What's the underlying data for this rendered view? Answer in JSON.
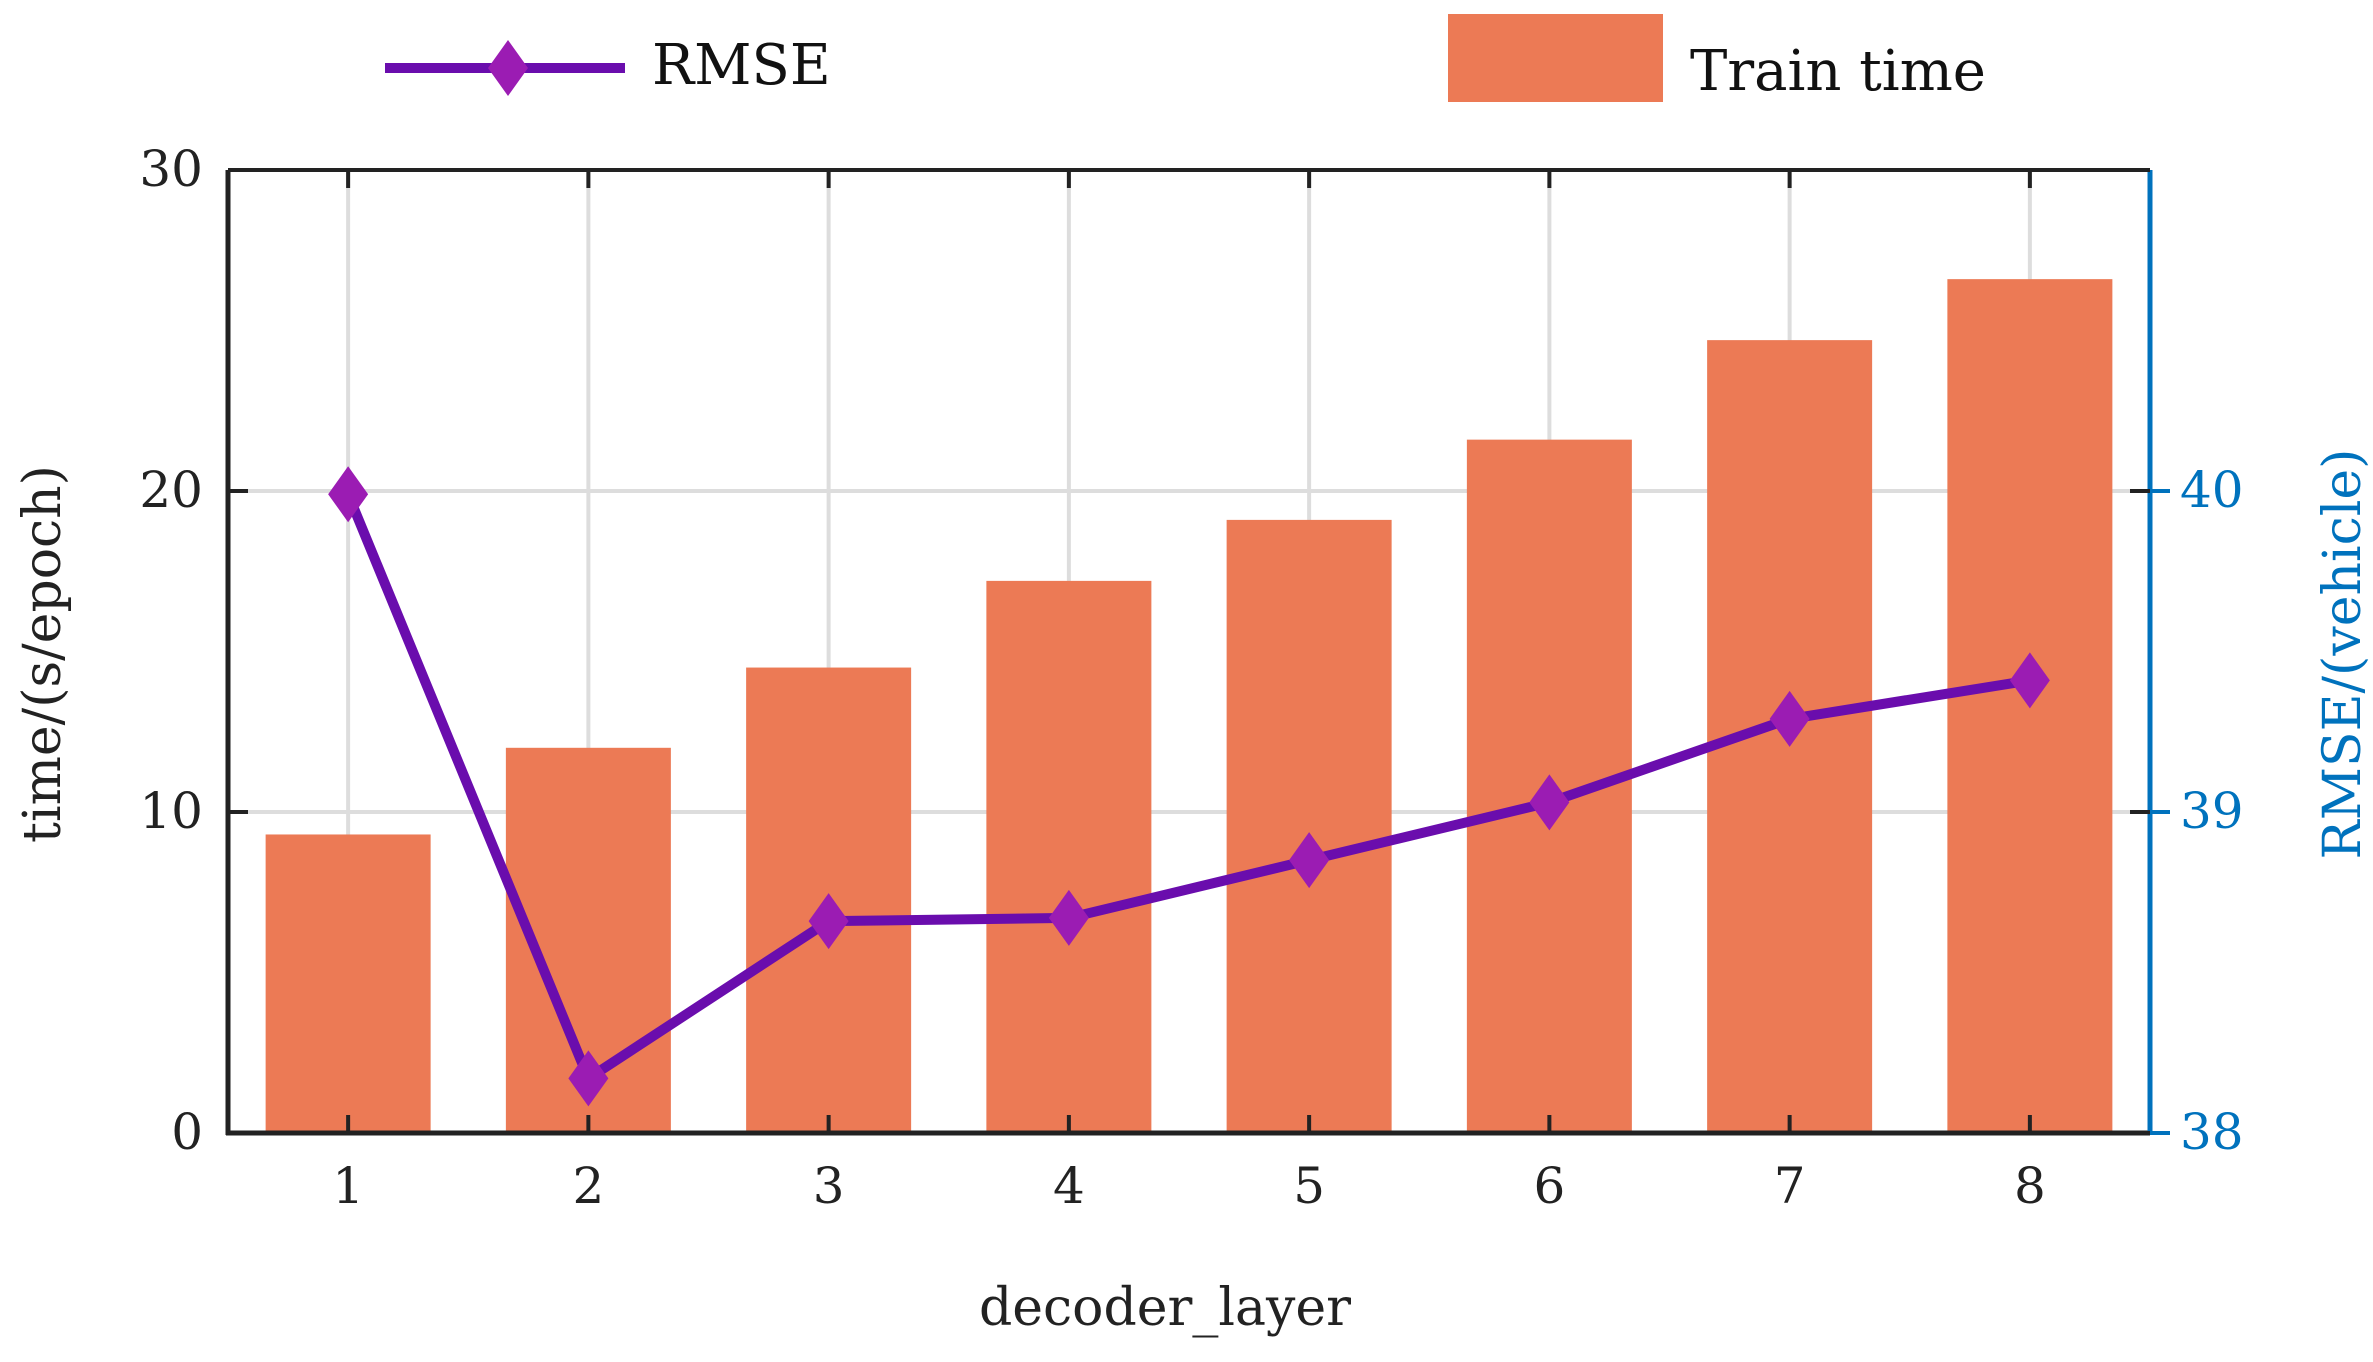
{
  "chart_data": {
    "type": "bar+line",
    "categories": [
      "1",
      "2",
      "3",
      "4",
      "5",
      "6",
      "7",
      "8"
    ],
    "xlabel": "decoder_layer",
    "ylabel_left": "time/(s/epoch)",
    "ylabel_right": "RMSE/(vehicle)",
    "ylim_left": [
      0,
      30
    ],
    "ylim_right": [
      38,
      41
    ],
    "yticks_left": [
      "0",
      "10",
      "20",
      "30"
    ],
    "yticks_right": [
      "38",
      "39",
      "40"
    ],
    "grid": true,
    "legend_position": "top",
    "series": [
      {
        "name": "Train time",
        "type": "bar",
        "axis": "left",
        "color": "#EC7A55",
        "values": [
          9.3,
          12.0,
          14.5,
          17.2,
          19.1,
          21.6,
          24.7,
          26.6
        ]
      },
      {
        "name": "RMSE",
        "type": "line",
        "axis": "right",
        "color": "#6A0DAD",
        "marker_color": "#9B1CB3",
        "marker": "diamond",
        "values": [
          39.99,
          38.17,
          38.66,
          38.67,
          38.85,
          39.03,
          39.29,
          39.41
        ]
      }
    ],
    "axis_right_color": "#0072BD"
  }
}
